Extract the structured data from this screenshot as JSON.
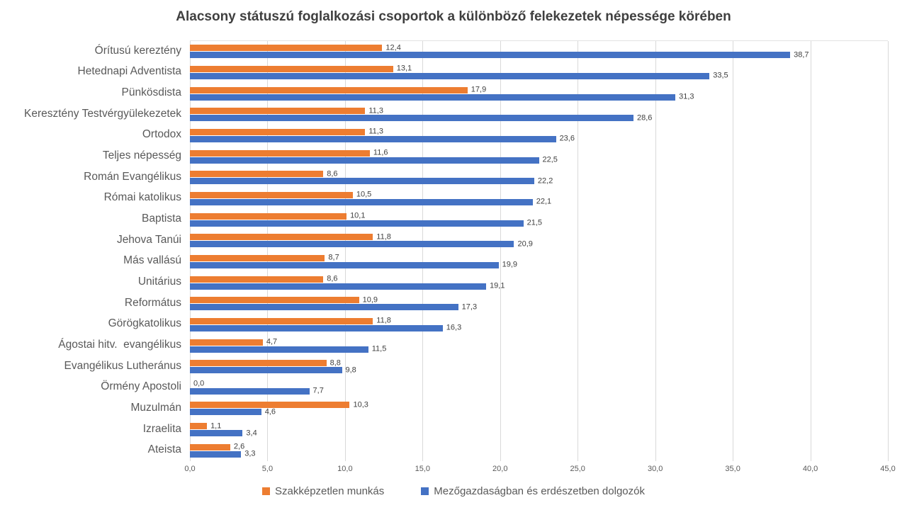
{
  "chart_data": {
    "type": "bar",
    "orientation": "horizontal",
    "title": "Alacsony státuszú foglalkozási csoportok a különböző felekezetek népessége körében",
    "categories": [
      "Órítusú kereztény",
      "Hetednapi Adventista",
      "Pünkösdista",
      "Keresztény Testvérgyülekezetek",
      "Ortodox",
      "Teljes népesség",
      "Román Evangélikus",
      "Római katolikus",
      "Baptista",
      "Jehova Tanúi",
      "Más vallású",
      "Unitárius",
      "Református",
      "Görögkatolikus",
      "Ágostai hitv.  evangélikus",
      "Evangélikus Lutheránus",
      "Örmény Apostoli",
      "Muzulmán",
      "Izraelita",
      "Ateista"
    ],
    "series": [
      {
        "name": "Szakképzetlen munkás",
        "color": "#ED7D31",
        "values": [
          12.4,
          13.1,
          17.9,
          11.3,
          11.3,
          11.6,
          8.6,
          10.5,
          10.1,
          11.8,
          8.7,
          8.6,
          10.9,
          11.8,
          4.7,
          8.8,
          0.0,
          10.3,
          1.1,
          2.6
        ],
        "labels": [
          "12,4",
          "13,1",
          "17,9",
          "11,3",
          "11,3",
          "11,6",
          "8,6",
          "10,5",
          "10,1",
          "11,8",
          "8,7",
          "8,6",
          "10,9",
          "11,8",
          "4,7",
          "8,8",
          "0,0",
          "10,3",
          "1,1",
          "2,6"
        ]
      },
      {
        "name": "Mezőgazdaságban és erdészetben dolgozók",
        "color": "#4472C4",
        "values": [
          38.7,
          33.5,
          31.3,
          28.6,
          23.6,
          22.5,
          22.2,
          22.1,
          21.5,
          20.9,
          19.9,
          19.1,
          17.3,
          16.3,
          11.5,
          9.8,
          7.7,
          4.6,
          3.4,
          3.3
        ],
        "labels": [
          "38,7",
          "33,5",
          "31,3",
          "28,6",
          "23,6",
          "22,5",
          "22,2",
          "22,1",
          "21,5",
          "20,9",
          "19,9",
          "19,1",
          "17,3",
          "16,3",
          "11,5",
          "9,8",
          "7,7",
          "4,6",
          "3,4",
          "3,3"
        ]
      }
    ],
    "xlim": [
      0,
      45
    ],
    "x_ticks": [
      0,
      5,
      10,
      15,
      20,
      25,
      30,
      35,
      40,
      45
    ],
    "x_tick_labels": [
      "0,0",
      "5,0",
      "10,0",
      "15,0",
      "20,0",
      "25,0",
      "30,0",
      "35,0",
      "40,0",
      "45,0"
    ],
    "grid": "vertical",
    "gridline_color": "#D9D9D9",
    "legend_position": "bottom",
    "text_color": "#595959",
    "value_label_color": "#404040"
  }
}
